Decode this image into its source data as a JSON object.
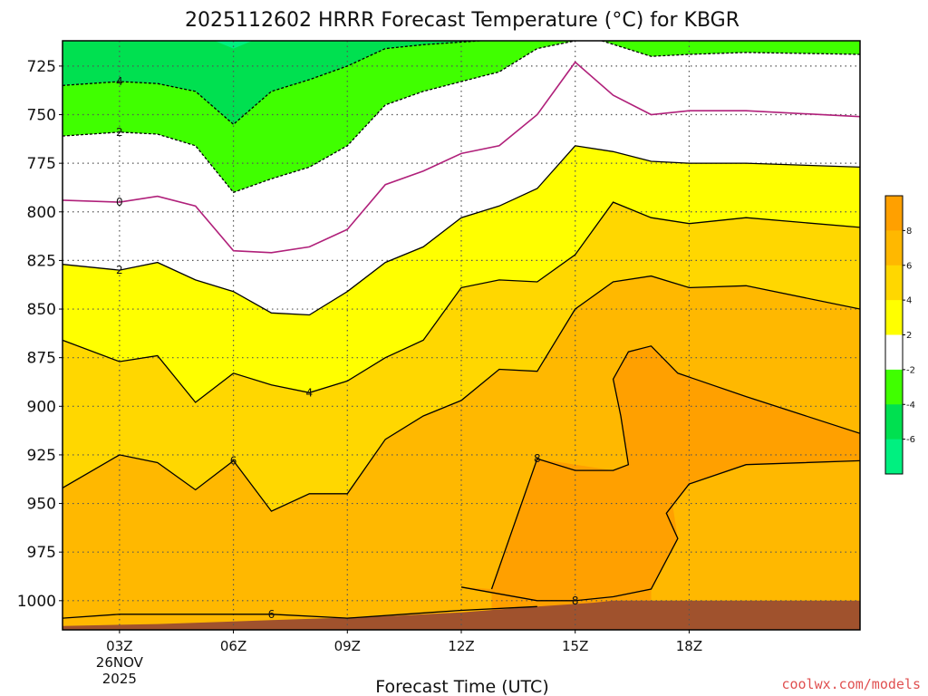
{
  "chart_data": {
    "type": "heatmap",
    "title": "2025112602 HRRR Forecast Temperature (°C) for KBGR",
    "xlabel": "Forecast Time (UTC)",
    "ylabel": "",
    "x_axis": {
      "range_hours": [
        1.5,
        22.5
      ],
      "ticks": [
        {
          "hour": 3,
          "label": "03Z",
          "date_label": "26NOV",
          "year_label": "2025"
        },
        {
          "hour": 6,
          "label": "06Z"
        },
        {
          "hour": 9,
          "label": "09Z"
        },
        {
          "hour": 12,
          "label": "12Z"
        },
        {
          "hour": 15,
          "label": "15Z"
        },
        {
          "hour": 18,
          "label": "18Z"
        }
      ]
    },
    "y_axis": {
      "unit": "hPa",
      "range": [
        712,
        1015
      ],
      "ticks": [
        725,
        750,
        775,
        800,
        825,
        850,
        875,
        900,
        925,
        950,
        975,
        1000
      ]
    },
    "grid": true,
    "colorbar": {
      "placement": "right",
      "levels": [
        {
          "from": -8,
          "to": -6,
          "color": "#00f080"
        },
        {
          "from": -6,
          "to": -4,
          "color": "#00e050"
        },
        {
          "from": -4,
          "to": -2,
          "color": "#40ff00"
        },
        {
          "from": -2,
          "to": 2,
          "color": "#ffffff"
        },
        {
          "from": 2,
          "to": 4,
          "color": "#ffff00"
        },
        {
          "from": 4,
          "to": 6,
          "color": "#ffd700"
        },
        {
          "from": 6,
          "to": 8,
          "color": "#ffb800"
        },
        {
          "from": 8,
          "to": 10,
          "color": "#ffa000"
        }
      ],
      "labels": [
        "8",
        "6",
        "4",
        "2",
        "-2",
        "-4",
        "-6"
      ]
    },
    "ground_color": "#a0522d",
    "contours": [
      {
        "value": 4,
        "style": "dashed",
        "color": "#000000",
        "points": [
          [
            1.5,
            735
          ],
          [
            3,
            733
          ],
          [
            4,
            734
          ],
          [
            5,
            738
          ],
          [
            6,
            755
          ],
          [
            7,
            738
          ],
          [
            8,
            732
          ],
          [
            9,
            725
          ],
          [
            10,
            716
          ],
          [
            11,
            714
          ],
          [
            12.5,
            712
          ]
        ]
      },
      {
        "value": 2,
        "style": "dashed",
        "color": "#000000",
        "points": [
          [
            1.5,
            761
          ],
          [
            3,
            759
          ],
          [
            4,
            760
          ],
          [
            5,
            766
          ],
          [
            6,
            790
          ],
          [
            7,
            783
          ],
          [
            8,
            777
          ],
          [
            9,
            766
          ],
          [
            10,
            745
          ],
          [
            11,
            738
          ],
          [
            12,
            733
          ],
          [
            13,
            728
          ],
          [
            14,
            716
          ],
          [
            15,
            712
          ]
        ]
      },
      {
        "value": 2,
        "style": "dashed",
        "color": "#000000",
        "points": [
          [
            15.7,
            712
          ],
          [
            17,
            720
          ],
          [
            18,
            719
          ],
          [
            19.5,
            718
          ],
          [
            22.5,
            719
          ]
        ]
      },
      {
        "value": 0,
        "style": "solid",
        "color": "#b0207a",
        "points": [
          [
            1.5,
            794
          ],
          [
            3,
            795
          ],
          [
            4,
            792
          ],
          [
            5,
            797
          ],
          [
            6,
            820
          ],
          [
            7,
            821
          ],
          [
            8,
            818
          ],
          [
            9,
            809
          ],
          [
            10,
            786
          ],
          [
            11,
            779
          ],
          [
            12,
            770
          ],
          [
            13,
            766
          ],
          [
            14,
            750
          ],
          [
            15,
            723
          ],
          [
            16,
            740
          ],
          [
            17,
            750
          ],
          [
            18,
            748
          ],
          [
            19.5,
            748
          ],
          [
            22.5,
            751
          ]
        ]
      },
      {
        "value": 2,
        "style": "solid",
        "color": "#000000",
        "points": [
          [
            1.5,
            827
          ],
          [
            3,
            830
          ],
          [
            4,
            826
          ],
          [
            5,
            835
          ],
          [
            6,
            841
          ],
          [
            7,
            852
          ],
          [
            8,
            853
          ],
          [
            9,
            841
          ],
          [
            10,
            826
          ],
          [
            11,
            818
          ],
          [
            12,
            803
          ],
          [
            13,
            797
          ],
          [
            14,
            788
          ],
          [
            15,
            766
          ],
          [
            16,
            769
          ],
          [
            17,
            774
          ],
          [
            18,
            775
          ],
          [
            19.5,
            775
          ],
          [
            22.5,
            777
          ]
        ]
      },
      {
        "value": 4,
        "style": "solid",
        "color": "#000000",
        "points": [
          [
            1.5,
            866
          ],
          [
            3,
            877
          ],
          [
            4,
            874
          ],
          [
            5,
            898
          ],
          [
            6,
            883
          ],
          [
            7,
            889
          ],
          [
            8,
            893
          ],
          [
            9,
            887
          ],
          [
            10,
            875
          ],
          [
            11,
            866
          ],
          [
            12,
            839
          ],
          [
            13,
            835
          ],
          [
            14,
            836
          ],
          [
            15,
            822
          ],
          [
            16,
            795
          ],
          [
            17,
            803
          ],
          [
            18,
            806
          ],
          [
            19.5,
            803
          ],
          [
            22.5,
            808
          ]
        ]
      },
      {
        "value": 6,
        "style": "solid",
        "color": "#000000",
        "points": [
          [
            1.5,
            942
          ],
          [
            3,
            925
          ],
          [
            4,
            929
          ],
          [
            5,
            943
          ],
          [
            6,
            928
          ],
          [
            7,
            954
          ],
          [
            8,
            945
          ],
          [
            9,
            945
          ],
          [
            10,
            917
          ],
          [
            11,
            905
          ],
          [
            12,
            897
          ],
          [
            13,
            881
          ],
          [
            14,
            882
          ],
          [
            15,
            850
          ],
          [
            16,
            836
          ],
          [
            17,
            833
          ],
          [
            18,
            839
          ],
          [
            19.5,
            838
          ],
          [
            22.5,
            850
          ]
        ]
      },
      {
        "value": 8,
        "style": "solid",
        "color": "#000000",
        "points": [
          [
            12.8,
            994
          ],
          [
            14,
            927
          ],
          [
            15,
            933
          ],
          [
            16,
            933
          ],
          [
            16.4,
            930
          ],
          [
            16.2,
            905
          ],
          [
            16,
            886
          ],
          [
            16.4,
            872
          ],
          [
            17,
            869
          ],
          [
            17.7,
            883
          ],
          [
            19.5,
            895
          ],
          [
            22.5,
            914
          ]
        ]
      },
      {
        "value": 8,
        "style": "solid",
        "color": "#000000",
        "points": [
          [
            12,
            993
          ],
          [
            14,
            1000
          ],
          [
            15,
            1000
          ],
          [
            16,
            998
          ],
          [
            17,
            994
          ],
          [
            17.7,
            968
          ],
          [
            17.4,
            955
          ],
          [
            18,
            940
          ],
          [
            19.5,
            930
          ],
          [
            22.5,
            928
          ]
        ]
      },
      {
        "value": 6,
        "style": "solid",
        "color": "#000000",
        "points": [
          [
            1.5,
            1009
          ],
          [
            3,
            1007
          ],
          [
            5,
            1007
          ],
          [
            7,
            1007
          ],
          [
            9,
            1009
          ],
          [
            10.5,
            1007
          ],
          [
            12,
            1005
          ],
          [
            14,
            1003
          ]
        ]
      }
    ],
    "contour_labels": [
      {
        "text": "4",
        "hour": 3,
        "p": 733
      },
      {
        "text": "2",
        "hour": 3,
        "p": 759
      },
      {
        "text": "0",
        "hour": 3,
        "p": 795
      },
      {
        "text": "2",
        "hour": 3,
        "p": 830
      },
      {
        "text": "4",
        "hour": 8,
        "p": 893
      },
      {
        "text": "6",
        "hour": 6,
        "p": 928
      },
      {
        "text": "8",
        "hour": 14,
        "p": 927
      },
      {
        "text": "8",
        "hour": 15,
        "p": 1000
      },
      {
        "text": "6",
        "hour": 7,
        "p": 1007
      }
    ],
    "ground_surface": [
      [
        1.5,
        1013
      ],
      [
        4,
        1012
      ],
      [
        7,
        1010
      ],
      [
        10,
        1008
      ],
      [
        12,
        1006
      ],
      [
        14,
        1003
      ],
      [
        15.5,
        1001
      ],
      [
        16,
        1000
      ],
      [
        22.5,
        1000
      ]
    ]
  },
  "credit": "coolwx.com/models"
}
